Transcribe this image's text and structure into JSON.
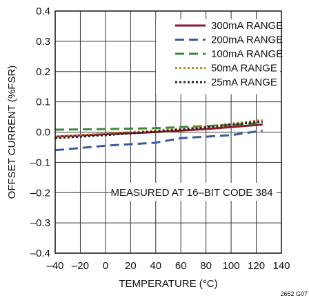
{
  "chart_data": {
    "type": "line",
    "title": "",
    "xlabel": "TEMPERATURE (°C)",
    "ylabel": "OFFSET CURRENT (%FSR)",
    "xlim": [
      -40,
      140
    ],
    "ylim": [
      -0.4,
      0.4
    ],
    "x_ticks": [
      -40,
      -20,
      0,
      20,
      40,
      60,
      80,
      100,
      120,
      140
    ],
    "x_tick_labels": [
      "–40",
      "–20",
      "0",
      "20",
      "40",
      "60",
      "80",
      "100",
      "120",
      "140"
    ],
    "y_ticks": [
      0.4,
      0.3,
      0.2,
      0.1,
      0.0,
      -0.1,
      -0.2,
      -0.3,
      -0.4
    ],
    "y_tick_labels": [
      "0.4",
      "0.3",
      "0.2",
      "0.1",
      "0.0",
      "–0.1",
      "–0.2",
      "–0.3",
      "–0.4"
    ],
    "grid": true,
    "legend_position": "top-right",
    "annotation": "MEASURED AT 16–BIT CODE 384",
    "figure_code": "2662 G07",
    "series": [
      {
        "name": "300mA RANGE",
        "color": "#8b1a2b",
        "style": "solid",
        "x": [
          -40,
          0,
          40,
          80,
          125
        ],
        "y": [
          -0.015,
          -0.007,
          0.0,
          0.01,
          0.025
        ]
      },
      {
        "name": "200mA RANGE",
        "color": "#3a5aa0",
        "style": "dashed",
        "x": [
          -40,
          0,
          40,
          60,
          100,
          125
        ],
        "y": [
          -0.06,
          -0.045,
          -0.035,
          -0.02,
          -0.01,
          0.005
        ]
      },
      {
        "name": "100mA RANGE",
        "color": "#3a8a3a",
        "style": "dashed",
        "x": [
          -40,
          0,
          40,
          80,
          125
        ],
        "y": [
          0.008,
          0.01,
          0.013,
          0.02,
          0.03
        ]
      },
      {
        "name": "50mA RANGE",
        "color": "#c87f2a",
        "style": "dotted",
        "x": [
          -40,
          0,
          40,
          80,
          125
        ],
        "y": [
          -0.015,
          -0.005,
          0.005,
          0.018,
          0.04
        ]
      },
      {
        "name": "25mA RANGE",
        "color": "#222222",
        "style": "dotted",
        "x": [
          -40,
          0,
          40,
          80,
          125
        ],
        "y": [
          -0.02,
          -0.01,
          0.002,
          0.015,
          0.035
        ]
      }
    ]
  }
}
